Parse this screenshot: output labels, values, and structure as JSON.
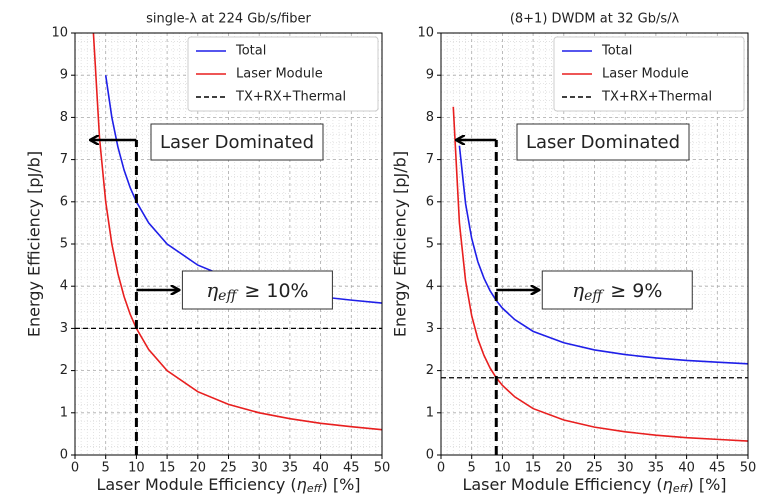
{
  "chart_data": [
    {
      "type": "line",
      "title": "single-λ at 224 Gb/s/fiber",
      "ylabel": "Energy Efficiency [pJ/b]",
      "xlabel": {
        "prefix": "Laser Module Efficiency (",
        "symbol": "η",
        "subscript": "eff",
        "suffix": ") [%]"
      },
      "x": [
        2,
        3,
        4,
        5,
        6,
        7,
        8,
        9,
        10,
        12,
        15,
        20,
        25,
        30,
        35,
        40,
        45,
        50
      ],
      "series": [
        {
          "name": "Total",
          "color": "#1f1fe8",
          "values": [
            null,
            null,
            null,
            9,
            8,
            7.29,
            6.75,
            6.33,
            6,
            5.5,
            5,
            4.5,
            4.2,
            4,
            3.86,
            3.75,
            3.67,
            3.6
          ]
        },
        {
          "name": "Laser Module",
          "color": "#e81f1f",
          "values": [
            null,
            10,
            7.5,
            6,
            5,
            4.29,
            3.75,
            3.33,
            3,
            2.5,
            2,
            1.5,
            1.2,
            1,
            0.86,
            0.75,
            0.67,
            0.6
          ]
        }
      ],
      "reference_line": {
        "name": "TX+RX+Thermal",
        "color": "#000000",
        "value": 3
      },
      "threshold_x": 10,
      "annotation": "Laser Dominated",
      "threshold_label": {
        "symbol": "η",
        "subscript": "eff",
        "text": "≥ 10%"
      },
      "xlim": [
        0,
        50
      ],
      "ylim": [
        0,
        10
      ],
      "xticks": [
        0,
        5,
        10,
        15,
        20,
        25,
        30,
        35,
        40,
        45,
        50
      ],
      "yticks": [
        0,
        1,
        2,
        3,
        4,
        5,
        6,
        7,
        8,
        9,
        10
      ],
      "grid": true,
      "legend": "upper right"
    },
    {
      "type": "line",
      "title": "(8+1) DWDM at 32 Gb/s/λ",
      "ylabel": "Energy Efficiency [pJ/b]",
      "xlabel": {
        "prefix": "Laser Module Efficiency (",
        "symbol": "η",
        "subscript": "eff",
        "suffix": ") [%]"
      },
      "x": [
        2,
        3,
        4,
        5,
        6,
        7,
        8,
        9,
        10,
        12,
        15,
        20,
        25,
        30,
        35,
        40,
        45,
        50
      ],
      "series": [
        {
          "name": "Total",
          "color": "#1f1fe8",
          "values": [
            null,
            7.33,
            5.96,
            5.13,
            4.58,
            4.19,
            3.89,
            3.66,
            3.48,
            3.21,
            2.93,
            2.66,
            2.49,
            2.38,
            2.3,
            2.24,
            2.2,
            2.16
          ]
        },
        {
          "name": "Laser Module",
          "color": "#e81f1f",
          "values": [
            8.25,
            5.5,
            4.13,
            3.3,
            2.75,
            2.36,
            2.06,
            1.83,
            1.65,
            1.38,
            1.1,
            0.83,
            0.66,
            0.55,
            0.47,
            0.41,
            0.37,
            0.33
          ]
        }
      ],
      "reference_line": {
        "name": "TX+RX+Thermal",
        "color": "#000000",
        "value": 1.83
      },
      "threshold_x": 9,
      "annotation": "Laser Dominated",
      "threshold_label": {
        "symbol": "η",
        "subscript": "eff",
        "text": "≥ 9%"
      },
      "xlim": [
        0,
        50
      ],
      "ylim": [
        0,
        10
      ],
      "xticks": [
        0,
        5,
        10,
        15,
        20,
        25,
        30,
        35,
        40,
        45,
        50
      ],
      "yticks": [
        0,
        1,
        2,
        3,
        4,
        5,
        6,
        7,
        8,
        9,
        10
      ],
      "grid": true,
      "legend": "upper right"
    }
  ]
}
